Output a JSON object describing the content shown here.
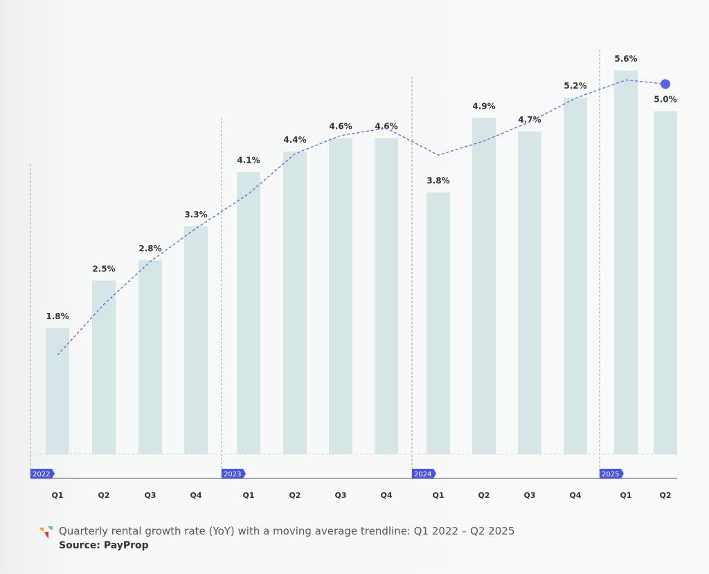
{
  "chart_data": {
    "type": "bar",
    "title": "",
    "xlabel": "",
    "ylabel": "",
    "ylim": [
      0,
      5.8
    ],
    "grid": false,
    "groups": [
      {
        "year": "2022",
        "quarters": [
          "Q1",
          "Q2",
          "Q3",
          "Q4"
        ]
      },
      {
        "year": "2023",
        "quarters": [
          "Q1",
          "Q2",
          "Q3",
          "Q4"
        ]
      },
      {
        "year": "2024",
        "quarters": [
          "Q1",
          "Q2",
          "Q3",
          "Q4"
        ]
      },
      {
        "year": "2025",
        "quarters": [
          "Q1",
          "Q2"
        ]
      }
    ],
    "values": [
      1.8,
      2.5,
      2.8,
      3.3,
      4.1,
      4.4,
      4.6,
      4.6,
      3.8,
      4.9,
      4.7,
      5.2,
      5.6,
      5.0
    ],
    "data_labels": [
      "1.8%",
      "2.5%",
      "2.8%",
      "3.3%",
      "4.1%",
      "4.4%",
      "4.6%",
      "4.6%",
      "3.8%",
      "4.9%",
      "4.7%",
      "5.2%",
      "5.6%",
      "5.0%"
    ],
    "trendline": {
      "type": "moving average",
      "style": "dashed",
      "values": [
        1.4,
        2.15,
        2.78,
        3.27,
        3.78,
        4.37,
        4.64,
        4.75,
        4.35,
        4.56,
        4.84,
        5.19,
        5.46,
        5.4
      ]
    },
    "colors": {
      "bar": "#d6e6e6",
      "trend": "#5b63e8",
      "year_tag": "#4a54e0",
      "axis": "#888888"
    }
  },
  "caption": "Quarterly rental growth rate (YoY) with a moving average trendline: Q1 2022 – Q2 2025",
  "source": "Source: PayProp",
  "logo_icon": "payprop-logo"
}
